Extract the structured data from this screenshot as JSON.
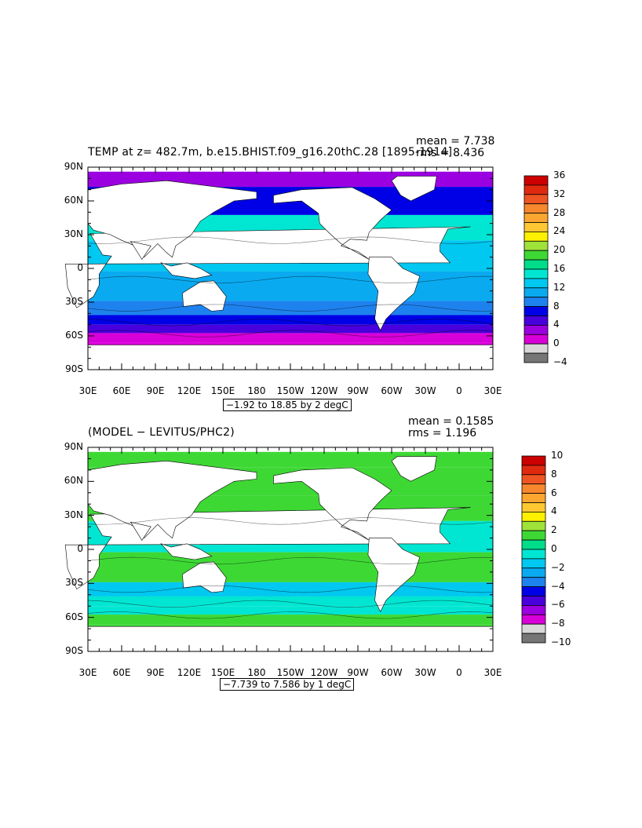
{
  "panels": [
    {
      "title": "TEMP at z= 482.7m, b.e15.BHIST.f09_g16.20thC.28 [1895-1914]",
      "mean_label": "mean = 7.738",
      "rms_label": "rms = 8.436",
      "range_label": "−1.92 to 18.85 by 2 degC",
      "lat_labels": [
        "90N",
        "60N",
        "30N",
        "0",
        "30S",
        "60S",
        "90S"
      ],
      "lon_labels": [
        "30E",
        "60E",
        "90E",
        "120E",
        "150E",
        "180",
        "150W",
        "120W",
        "90W",
        "60W",
        "30W",
        "0",
        "30E"
      ],
      "colorbar": {
        "labels": [
          "36",
          "32",
          "28",
          "24",
          "20",
          "16",
          "12",
          "8",
          "4",
          "0",
          "−4"
        ],
        "colors": [
          "#cc0000",
          "#e02a10",
          "#ee5522",
          "#f7882e",
          "#fba630",
          "#fdc832",
          "#fef100",
          "#9ee23a",
          "#3ed835",
          "#00dd8a",
          "#00e6d2",
          "#00c8f0",
          "#0aaaf0",
          "#1e82ee",
          "#0000e6",
          "#4800dc",
          "#9b00e0",
          "#d800d8",
          "#d8d8d8",
          "#767676"
        ]
      },
      "zones": [
        {
          "lat": 85,
          "color": "#9b00e0"
        },
        {
          "lat": 60,
          "color": "#0000e6"
        },
        {
          "lat": 35,
          "color": "#00e6d2"
        },
        {
          "lat": 15,
          "color": "#00c8f0"
        },
        {
          "lat": -20,
          "color": "#0aaaf0"
        },
        {
          "lat": -38,
          "color": "#1e82ee"
        },
        {
          "lat": -45,
          "color": "#0000e6"
        },
        {
          "lat": -55,
          "color": "#4800dc"
        },
        {
          "lat": -60,
          "color": "#d800d8"
        },
        {
          "lat": -72,
          "color": "#d800d8"
        }
      ]
    },
    {
      "title": "(MODEL − LEVITUS/PHC2)",
      "mean_label": "mean = 0.1585",
      "rms_label": "rms = 1.196",
      "range_label": "−7.739 to 7.586 by 1 degC",
      "lat_labels": [
        "90N",
        "60N",
        "30N",
        "0",
        "30S",
        "60S",
        "90S"
      ],
      "lon_labels": [
        "30E",
        "60E",
        "90E",
        "120E",
        "150E",
        "180",
        "150W",
        "120W",
        "90W",
        "60W",
        "30W",
        "0",
        "30E"
      ],
      "colorbar": {
        "labels": [
          "10",
          "8",
          "6",
          "4",
          "2",
          "0",
          "−2",
          "−4",
          "−6",
          "−8",
          "−10"
        ],
        "colors": [
          "#cc0000",
          "#e02a10",
          "#ee5522",
          "#f7882e",
          "#fba630",
          "#fdc832",
          "#fef100",
          "#9ee23a",
          "#3ed835",
          "#00dd8a",
          "#00e6d2",
          "#00c8f0",
          "#0aaaf0",
          "#1e82ee",
          "#0000e6",
          "#4800dc",
          "#9b00e0",
          "#d800d8",
          "#d8d8d8",
          "#767676"
        ]
      },
      "zones": [
        {
          "lat": 85,
          "color": "#3ed835"
        },
        {
          "lat": 60,
          "color": "#3ed835"
        },
        {
          "lat": 35,
          "color": "#3ed835"
        },
        {
          "lat": 15,
          "color": "#00e6d2"
        },
        {
          "lat": -20,
          "color": "#3ed835"
        },
        {
          "lat": -38,
          "color": "#00c8f0"
        },
        {
          "lat": -45,
          "color": "#00e6d2"
        },
        {
          "lat": -55,
          "color": "#00e6d2"
        },
        {
          "lat": -60,
          "color": "#3ed835"
        },
        {
          "lat": -72,
          "color": "#3ed835"
        }
      ]
    }
  ]
}
